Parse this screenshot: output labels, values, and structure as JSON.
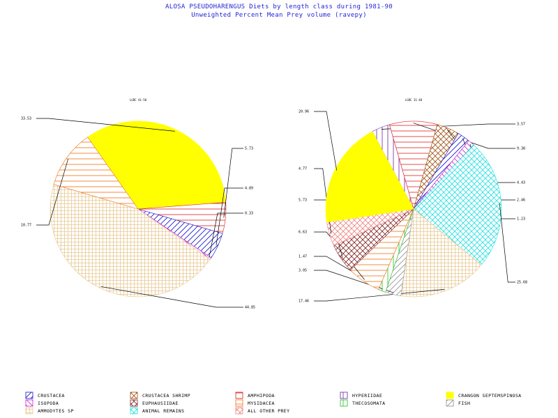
{
  "chart_data": {
    "type": "pie",
    "title": "ALOSA PSEUDOHARENGUS Diets by length class during 1981-90",
    "subtitle": "Unweighted Percent Mean Prey volume (ravepy)",
    "charts": [
      {
        "label": "LGRC 41-50",
        "slices": [
          {
            "category": "CRANGON SEPTEMSPINOSA",
            "value": 33.53,
            "label": "33.53"
          },
          {
            "category": "AMPHIPODA",
            "value": 5.73,
            "label": "5.73"
          },
          {
            "category": "CRUSTACEA",
            "value": 4.89,
            "label": "4.89"
          },
          {
            "category": "ISOPODA",
            "value": 0.33,
            "label": "0.33"
          },
          {
            "category": "AMMODYTES SP",
            "value": 44.85,
            "label": "44.85"
          },
          {
            "category": "MYSIDACEA",
            "value": 10.77,
            "label": "10.77"
          }
        ]
      },
      {
        "label": "LGRC 31-40",
        "slices": [
          {
            "category": "HYPERIIDAE",
            "value": 3.57,
            "label": "3.57"
          },
          {
            "category": "AMPHIPODA",
            "value": 9.38,
            "label": "9.38"
          },
          {
            "category": "CRUSTACEA SHRIMP",
            "value": 4.43,
            "label": "4.43"
          },
          {
            "category": "CRUSTACEA",
            "value": 2.46,
            "label": "2.46"
          },
          {
            "category": "ISOPODA",
            "value": 1.23,
            "label": "1.23"
          },
          {
            "category": "ANIMAL REMAINS",
            "value": 25.68,
            "label": "25.68"
          },
          {
            "category": "AMMODYTES SP",
            "value": 17.46,
            "label": "17.46"
          },
          {
            "category": "FISH",
            "value": 3.05,
            "label": "3.05"
          },
          {
            "category": "THECOSOMATA",
            "value": 1.47,
            "label": "1.47"
          },
          {
            "category": "MYSIDACEA",
            "value": 6.63,
            "label": "6.63"
          },
          {
            "category": "EUPHAUSIIDAE",
            "value": 5.73,
            "label": "5.73"
          },
          {
            "category": "ALL OTHER PREY",
            "value": 4.77,
            "label": "4.77"
          },
          {
            "category": "CRANGON SEPTEMSPINOSA",
            "value": 20.96,
            "label": "20.96"
          }
        ]
      }
    ],
    "legend": [
      {
        "name": "CRUSTACEA",
        "color": "#1010d0",
        "pattern": "diag-up"
      },
      {
        "name": "CRUSTACEA SHRIMP",
        "color": "#a05010",
        "pattern": "cross-diag"
      },
      {
        "name": "AMPHIPODA",
        "color": "#e02020",
        "pattern": "horiz"
      },
      {
        "name": "HYPERIIDAE",
        "color": "#7020a0",
        "pattern": "vert"
      },
      {
        "name": "CRANGON SEPTEMSPINOSA",
        "color": "#ffff00",
        "pattern": "solid"
      },
      {
        "name": "ISOPODA",
        "color": "#d020d0",
        "pattern": "diag-down"
      },
      {
        "name": "EUPHAUSIIDAE",
        "color": "#802020",
        "pattern": "cross-diag"
      },
      {
        "name": "MYSIDACEA",
        "color": "#f07010",
        "pattern": "horiz"
      },
      {
        "name": "THECOSOMATA",
        "color": "#20c020",
        "pattern": "vert"
      },
      {
        "name": "FISH",
        "color": "#909090",
        "pattern": "diag-up"
      },
      {
        "name": "AMMODYTES SP",
        "color": "#e8c890",
        "pattern": "grid"
      },
      {
        "name": "ANIMAL REMAINS",
        "color": "#20e0e0",
        "pattern": "cross-diag"
      },
      {
        "name": "ALL OTHER PREY",
        "color": "#f08080",
        "pattern": "cross-diag"
      }
    ],
    "legend_placement": "bottom"
  }
}
